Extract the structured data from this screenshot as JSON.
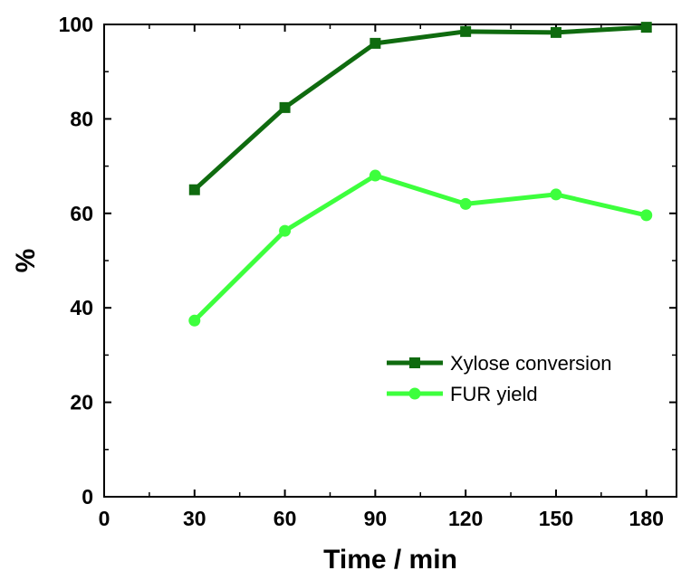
{
  "chart_data": {
    "type": "line",
    "xlabel": "Time / min",
    "ylabel": "%",
    "xlim": [
      0,
      190
    ],
    "ylim": [
      0,
      100
    ],
    "x_ticks": [
      0,
      30,
      60,
      90,
      120,
      150,
      180
    ],
    "x_tick_labels": [
      "0",
      "30",
      "60",
      "90",
      "120",
      "150",
      "180"
    ],
    "y_ticks": [
      0,
      20,
      40,
      60,
      80,
      100
    ],
    "y_tick_labels": [
      "0",
      "20",
      "40",
      "60",
      "80",
      "100"
    ],
    "grid": false,
    "legend_position": "lower-right",
    "x": [
      30,
      60,
      90,
      120,
      150,
      180
    ],
    "series": [
      {
        "name": "Xylose conversion",
        "values": [
          65.0,
          82.4,
          96.0,
          98.5,
          98.3,
          99.4
        ],
        "color": "#0f6b0f",
        "marker": "square"
      },
      {
        "name": "FUR yield",
        "values": [
          37.3,
          56.3,
          68.0,
          62.0,
          64.0,
          59.6
        ],
        "color": "#3dff3d",
        "marker": "circle"
      }
    ]
  }
}
